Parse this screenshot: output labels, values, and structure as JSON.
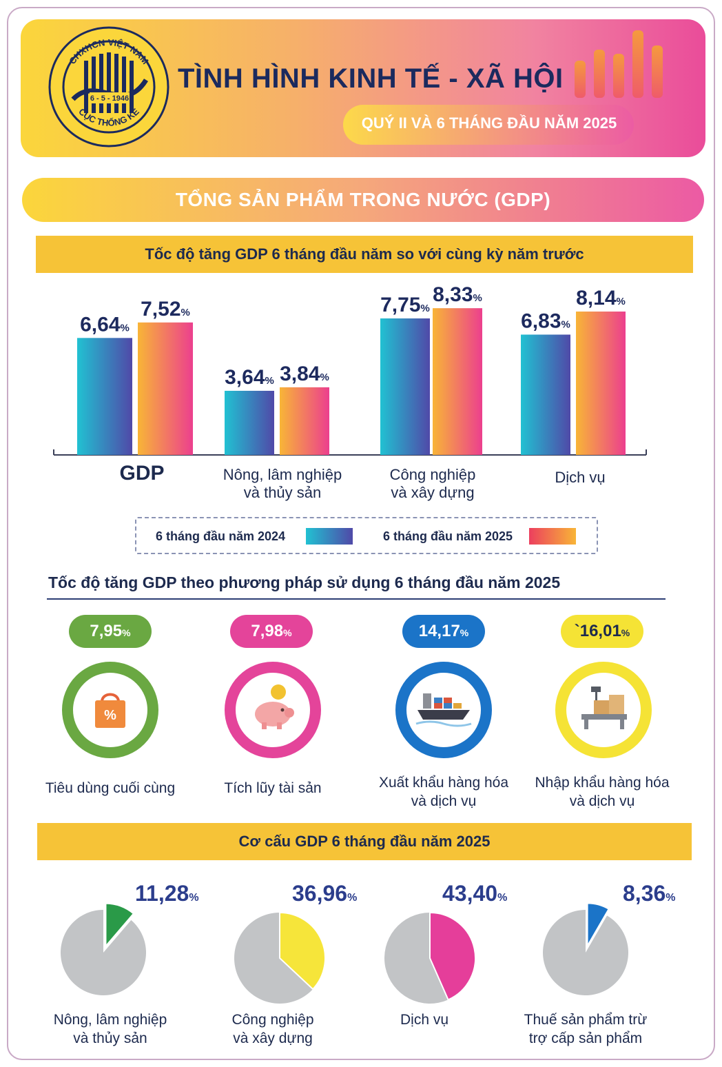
{
  "header": {
    "title": "TÌNH HÌNH KINH TẾ - XÃ HỘI",
    "subtitle": "QUÝ II VÀ 6 THÁNG ĐẦU NĂM 2025",
    "logo": {
      "top_text": "CHXHCN VIỆT NAM",
      "date_text": "6 - 5 - 1946",
      "bottom_text": "CỤC THỐNG KÊ"
    },
    "colors": {
      "navy": "#1b2a5e",
      "yellow": "#fbd63b",
      "pink": "#ea4c9a",
      "orange": "#f59a3e"
    }
  },
  "section": {
    "title": "TỔNG SẢN PHẨM TRONG NƯỚC (GDP)"
  },
  "growth_chart": {
    "heading": "Tốc độ tăng GDP 6 tháng đầu năm so với cùng kỳ năm trước",
    "legend": [
      {
        "label": "6 tháng đầu năm 2024",
        "series": "2024"
      },
      {
        "label": "6 tháng đầu năm 2025",
        "series": "2025"
      }
    ]
  },
  "chart_data": {
    "type": "bar",
    "title": "Tốc độ tăng GDP 6 tháng đầu năm so với cùng kỳ năm trước",
    "categories": [
      "GDP",
      "Nông, lâm nghiệp\nvà thủy sản",
      "Công nghiệp\nvà xây dựng",
      "Dịch vụ"
    ],
    "series": [
      {
        "name": "6 tháng đầu năm 2024",
        "values": [
          6.64,
          3.64,
          7.75,
          6.83
        ],
        "labels": [
          "6,64",
          "3,64",
          "7,75",
          "6,83"
        ]
      },
      {
        "name": "6 tháng đầu năm 2025",
        "values": [
          7.52,
          3.84,
          8.33,
          8.14
        ],
        "labels": [
          "7,52",
          "3,84",
          "8,33",
          "8,14"
        ]
      }
    ],
    "unit": "%",
    "ylim": [
      0,
      9
    ],
    "grid": false
  },
  "usage": {
    "title": "Tốc độ tăng GDP theo phương pháp sử dụng 6 tháng đầu năm 2025",
    "items": [
      {
        "value": "7,95",
        "pct": "%",
        "label": "Tiêu dùng cuối cùng",
        "color": "#6aa842",
        "icon": "shopping-bag-icon"
      },
      {
        "value": "7,98",
        "pct": "%",
        "label": "Tích lũy tài sản",
        "color": "#e4449a",
        "icon": "piggy-bank-icon"
      },
      {
        "value": "14,17",
        "pct": "%",
        "label": "Xuất khẩu hàng hóa\nvà dịch vụ",
        "color": "#1b74c8",
        "icon": "cargo-ship-icon"
      },
      {
        "value": "`16,01",
        "pct": "%",
        "label": "Nhập khẩu hàng hóa\nvà dịch vụ",
        "color": "#f5e335",
        "icon": "cargo-scale-icon"
      }
    ]
  },
  "structure": {
    "heading": "Cơ cấu GDP 6 tháng đầu năm 2025",
    "items": [
      {
        "value": "11,28",
        "pct": "%",
        "share": 11.28,
        "label": "Nông, lâm nghiệp\nvà thủy sản",
        "color": "#2a9a48"
      },
      {
        "value": "36,96",
        "pct": "%",
        "share": 36.96,
        "label": "Công nghiệp\nvà xây dựng",
        "color": "#f6e53a"
      },
      {
        "value": "43,40",
        "pct": "%",
        "share": 43.4,
        "label": "Dịch vụ",
        "color": "#e53e9a"
      },
      {
        "value": "8,36",
        "pct": "%",
        "share": 8.36,
        "label": "Thuế sản phẩm trừ\ntrợ cấp sản phẩm",
        "color": "#1b74c8"
      }
    ],
    "rest_color": "#c2c4c6"
  }
}
